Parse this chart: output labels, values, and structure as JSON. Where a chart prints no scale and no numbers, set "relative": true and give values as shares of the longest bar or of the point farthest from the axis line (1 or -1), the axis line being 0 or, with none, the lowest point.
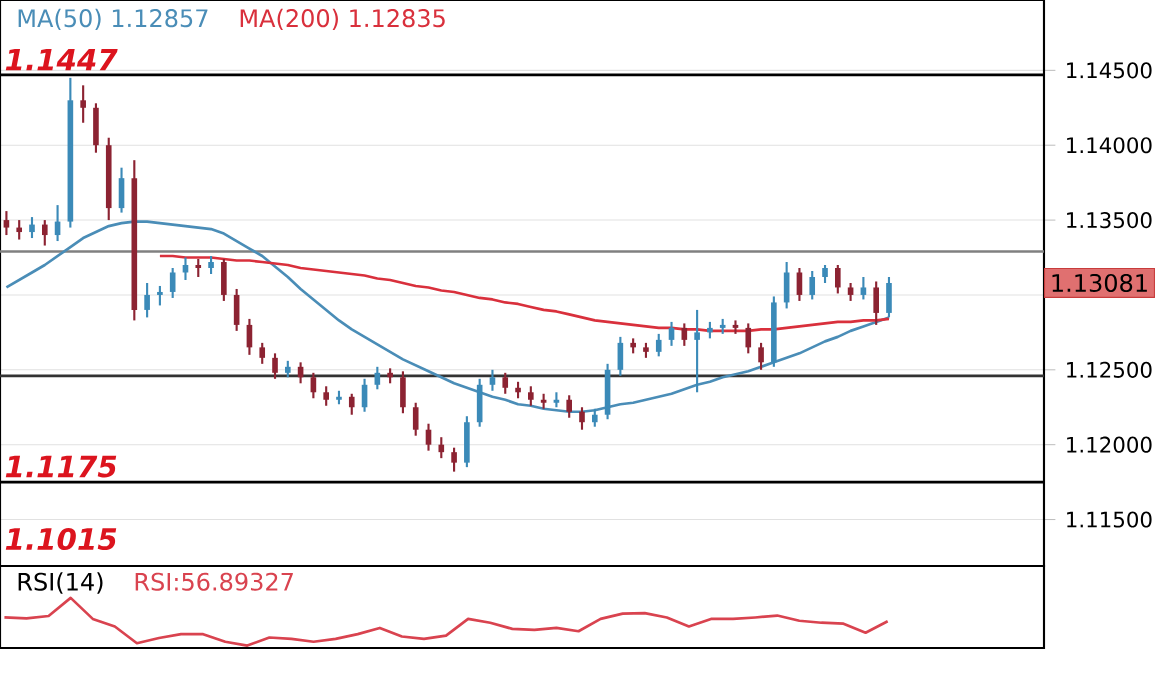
{
  "chart_data": [
    {
      "type": "candlestick",
      "categories": [
        null,
        null,
        null,
        null,
        null,
        null,
        null,
        null,
        null,
        null,
        null,
        null,
        null,
        null,
        null,
        null,
        null,
        null,
        null,
        null,
        null,
        null,
        null,
        null,
        null,
        null,
        null,
        null,
        null,
        null,
        null,
        null,
        null,
        null,
        null,
        null,
        null,
        null,
        null,
        null,
        null,
        null,
        null,
        null,
        null,
        null,
        null,
        null,
        null,
        null,
        null,
        null,
        null,
        null,
        null,
        null,
        null,
        null,
        null,
        null,
        null,
        null,
        null,
        null,
        null,
        null,
        null,
        null,
        null,
        null
      ],
      "ohlc": [
        [
          1.135,
          1.1356,
          1.134,
          1.1345
        ],
        [
          1.1345,
          1.135,
          1.1337,
          1.1342
        ],
        [
          1.1342,
          1.1352,
          1.1338,
          1.1347
        ],
        [
          1.1347,
          1.135,
          1.1333,
          1.134
        ],
        [
          1.134,
          1.136,
          1.1336,
          1.1349
        ],
        [
          1.1349,
          1.1445,
          1.1345,
          1.143
        ],
        [
          1.143,
          1.144,
          1.1415,
          1.1425
        ],
        [
          1.1425,
          1.1428,
          1.1395,
          1.14
        ],
        [
          1.14,
          1.1405,
          1.135,
          1.1358
        ],
        [
          1.1358,
          1.1385,
          1.1355,
          1.1378
        ],
        [
          1.1378,
          1.139,
          1.1283,
          1.129
        ],
        [
          1.129,
          1.1308,
          1.1285,
          1.13
        ],
        [
          1.13,
          1.1306,
          1.1293,
          1.1302
        ],
        [
          1.1302,
          1.1318,
          1.1298,
          1.1315
        ],
        [
          1.1315,
          1.1325,
          1.131,
          1.132
        ],
        [
          1.132,
          1.1324,
          1.1312,
          1.1318
        ],
        [
          1.1318,
          1.1326,
          1.1314,
          1.1322
        ],
        [
          1.1322,
          1.1324,
          1.1296,
          1.13
        ],
        [
          1.13,
          1.1304,
          1.1276,
          1.128
        ],
        [
          1.128,
          1.1284,
          1.126,
          1.1265
        ],
        [
          1.1265,
          1.1268,
          1.1254,
          1.1258
        ],
        [
          1.1258,
          1.1261,
          1.1244,
          1.1248
        ],
        [
          1.1248,
          1.1256,
          1.1245,
          1.1252
        ],
        [
          1.1252,
          1.1255,
          1.1241,
          1.1245
        ],
        [
          1.1245,
          1.1248,
          1.1231,
          1.1235
        ],
        [
          1.1235,
          1.1239,
          1.1226,
          1.123
        ],
        [
          1.123,
          1.1236,
          1.1227,
          1.1232
        ],
        [
          1.1232,
          1.1234,
          1.122,
          1.1225
        ],
        [
          1.1225,
          1.1244,
          1.1222,
          1.124
        ],
        [
          1.124,
          1.1252,
          1.1237,
          1.1248
        ],
        [
          1.1248,
          1.1251,
          1.1241,
          1.1245
        ],
        [
          1.1245,
          1.1249,
          1.1221,
          1.1225
        ],
        [
          1.1225,
          1.1228,
          1.1206,
          1.121
        ],
        [
          1.121,
          1.1214,
          1.1196,
          1.12
        ],
        [
          1.12,
          1.1205,
          1.1191,
          1.1195
        ],
        [
          1.1195,
          1.1198,
          1.1182,
          1.1188
        ],
        [
          1.1188,
          1.1219,
          1.1185,
          1.1215
        ],
        [
          1.1215,
          1.1244,
          1.1212,
          1.124
        ],
        [
          1.124,
          1.125,
          1.1236,
          1.1245
        ],
        [
          1.1245,
          1.1248,
          1.1234,
          1.1238
        ],
        [
          1.1238,
          1.1242,
          1.1231,
          1.1235
        ],
        [
          1.1235,
          1.1239,
          1.1226,
          1.123
        ],
        [
          1.123,
          1.1234,
          1.1224,
          1.1228
        ],
        [
          1.1228,
          1.1235,
          1.1225,
          1.123
        ],
        [
          1.123,
          1.1233,
          1.1218,
          1.1222
        ],
        [
          1.1222,
          1.1225,
          1.121,
          1.1215
        ],
        [
          1.1215,
          1.1224,
          1.1212,
          1.122
        ],
        [
          1.122,
          1.1254,
          1.1217,
          1.125
        ],
        [
          1.125,
          1.1272,
          1.1246,
          1.1268
        ],
        [
          1.1268,
          1.1271,
          1.1261,
          1.1265
        ],
        [
          1.1265,
          1.1268,
          1.1258,
          1.1262
        ],
        [
          1.1262,
          1.1274,
          1.1259,
          1.127
        ],
        [
          1.127,
          1.1282,
          1.1266,
          1.1278
        ],
        [
          1.1278,
          1.1281,
          1.1266,
          1.127
        ],
        [
          1.127,
          1.129,
          1.1235,
          1.1275
        ],
        [
          1.1275,
          1.1282,
          1.1271,
          1.1278
        ],
        [
          1.1278,
          1.1284,
          1.1274,
          1.128
        ],
        [
          1.128,
          1.1283,
          1.1274,
          1.1278
        ],
        [
          1.1278,
          1.1281,
          1.1261,
          1.1265
        ],
        [
          1.1265,
          1.1268,
          1.125,
          1.1255
        ],
        [
          1.1255,
          1.1299,
          1.1252,
          1.1295
        ],
        [
          1.1295,
          1.1322,
          1.1291,
          1.1315
        ],
        [
          1.1315,
          1.1318,
          1.1296,
          1.13
        ],
        [
          1.13,
          1.1316,
          1.1297,
          1.1312
        ],
        [
          1.1312,
          1.132,
          1.1308,
          1.1318
        ],
        [
          1.1318,
          1.132,
          1.1301,
          1.1305
        ],
        [
          1.1305,
          1.1308,
          1.1296,
          1.13
        ],
        [
          1.13,
          1.1312,
          1.1297,
          1.1305
        ],
        [
          1.1305,
          1.1309,
          1.128,
          1.1288
        ],
        [
          1.1288,
          1.1312,
          1.1285,
          1.1308
        ]
      ],
      "colors": [
        "#8c2332",
        "#8c2332",
        "#3b8ab8",
        "#8c2332",
        "#3b8ab8",
        "#3b8ab8",
        "#8c2332",
        "#8c2332",
        "#8c2332",
        "#3b8ab8",
        "#8c2332",
        "#3b8ab8",
        "#3b8ab8",
        "#3b8ab8",
        "#3b8ab8",
        "#8c2332",
        "#3b8ab8",
        "#8c2332",
        "#8c2332",
        "#8c2332",
        "#8c2332",
        "#8c2332",
        "#3b8ab8",
        "#8c2332",
        "#8c2332",
        "#8c2332",
        "#3b8ab8",
        "#8c2332",
        "#3b8ab8",
        "#3b8ab8",
        "#8c2332",
        "#8c2332",
        "#8c2332",
        "#8c2332",
        "#8c2332",
        "#8c2332",
        "#3b8ab8",
        "#3b8ab8",
        "#3b8ab8",
        "#8c2332",
        "#8c2332",
        "#8c2332",
        "#8c2332",
        "#3b8ab8",
        "#8c2332",
        "#8c2332",
        "#3b8ab8",
        "#3b8ab8",
        "#3b8ab8",
        "#8c2332",
        "#8c2332",
        "#3b8ab8",
        "#3b8ab8",
        "#8c2332",
        "#3b8ab8",
        "#3b8ab8",
        "#3b8ab8",
        "#8c2332",
        "#8c2332",
        "#8c2332",
        "#3b8ab8",
        "#3b8ab8",
        "#8c2332",
        "#3b8ab8",
        "#3b8ab8",
        "#8c2332",
        "#8c2332",
        "#3b8ab8",
        "#8c2332",
        "#3b8ab8"
      ],
      "series": [
        {
          "name": "MA(50) 1.12857",
          "type": "line",
          "color": "#4a8db7",
          "values": [
            1.1305,
            1.131,
            1.1315,
            1.132,
            1.1326,
            1.1332,
            1.1338,
            1.1342,
            1.1346,
            1.1348,
            1.1349,
            1.1349,
            1.1348,
            1.1347,
            1.1346,
            1.1345,
            1.1344,
            1.1341,
            1.1336,
            1.1331,
            1.1326,
            1.1319,
            1.1312,
            1.1304,
            1.1297,
            1.129,
            1.1283,
            1.1277,
            1.1272,
            1.1267,
            1.1262,
            1.1257,
            1.1253,
            1.1249,
            1.1245,
            1.1241,
            1.1238,
            1.1235,
            1.1232,
            1.123,
            1.1227,
            1.1226,
            1.1224,
            1.1223,
            1.1222,
            1.1222,
            1.1223,
            1.1225,
            1.1227,
            1.1228,
            1.123,
            1.1232,
            1.1234,
            1.1237,
            1.124,
            1.1242,
            1.1245,
            1.1247,
            1.1249,
            1.1252,
            1.1255,
            1.1258,
            1.1261,
            1.1265,
            1.1269,
            1.1272,
            1.1276,
            1.1279,
            1.1282,
            1.1285
          ]
        },
        {
          "name": "MA(200) 1.12835",
          "type": "line",
          "color": "#d9303c",
          "values": [
            null,
            null,
            null,
            null,
            null,
            null,
            null,
            null,
            null,
            null,
            null,
            null,
            1.1326,
            1.1326,
            1.1325,
            1.1325,
            1.1325,
            1.1324,
            1.1323,
            1.1323,
            1.1322,
            1.1321,
            1.132,
            1.1318,
            1.1317,
            1.1316,
            1.1315,
            1.1314,
            1.1313,
            1.1311,
            1.131,
            1.1308,
            1.1306,
            1.1305,
            1.1303,
            1.1302,
            1.13,
            1.1298,
            1.1297,
            1.1295,
            1.1294,
            1.1292,
            1.129,
            1.1289,
            1.1287,
            1.1285,
            1.1283,
            1.1282,
            1.1281,
            1.128,
            1.1279,
            1.1278,
            1.1278,
            1.1277,
            1.1277,
            1.1276,
            1.1276,
            1.1276,
            1.1276,
            1.1277,
            1.1277,
            1.1278,
            1.1279,
            1.128,
            1.1281,
            1.1282,
            1.1282,
            1.1283,
            1.1283,
            1.1284
          ]
        }
      ],
      "ylim": [
        1.1119,
        1.1497
      ],
      "yticks": [
        {
          "value": 1.145,
          "label": "1.14500"
        },
        {
          "value": 1.14,
          "label": "1.14000"
        },
        {
          "value": 1.135,
          "label": "1.13500"
        },
        {
          "value": 1.13,
          "label": null
        },
        {
          "value": 1.125,
          "label": "1.12500"
        },
        {
          "value": 1.12,
          "label": "1.12000"
        },
        {
          "value": 1.115,
          "label": "1.11500"
        }
      ],
      "tick_labels": "y",
      "grid": "y",
      "legend": "top left",
      "ref_lines": [
        {
          "axis": "y",
          "value": 1.1447,
          "label": "1.1447",
          "color": "#000000"
        },
        {
          "axis": "y",
          "value": 1.1175,
          "label": "1.1175",
          "color": "#000000"
        },
        {
          "axis": "y",
          "value": 1.1329,
          "color": "#808080"
        },
        {
          "axis": "y",
          "value": 1.1246,
          "color": "#333333"
        }
      ],
      "annotations": [
        "1.1015",
        "1.13081"
      ]
    },
    {
      "type": "line",
      "title": "RSI(14)",
      "relative": true,
      "legend": "top left",
      "categories": [
        null,
        null,
        null,
        null,
        null,
        null,
        null,
        null,
        null,
        null,
        null,
        null,
        null,
        null,
        null,
        null,
        null,
        null,
        null,
        null,
        null,
        null,
        null,
        null,
        null,
        null,
        null,
        null,
        null,
        null,
        null,
        null,
        null,
        null,
        null,
        null,
        null,
        null,
        null,
        null,
        null
      ],
      "series": [
        {
          "name": "RSI:56.89327",
          "color": "#d9434f",
          "values": [
            0.59,
            0.57,
            0.62,
            1.0,
            0.56,
            0.4,
            0.05,
            0.16,
            0.24,
            0.24,
            0.08,
            0,
            0.17,
            0.14,
            0.08,
            0.14,
            0.24,
            0.37,
            0.19,
            0.14,
            0.21,
            0.56,
            0.48,
            0.35,
            0.33,
            0.37,
            0.3,
            0.56,
            0.67,
            0.68,
            0.59,
            0.4,
            0.56,
            0.56,
            0.59,
            0.63,
            0.52,
            0.48,
            0.46,
            0.27,
            0.51
          ]
        }
      ]
    }
  ]
}
